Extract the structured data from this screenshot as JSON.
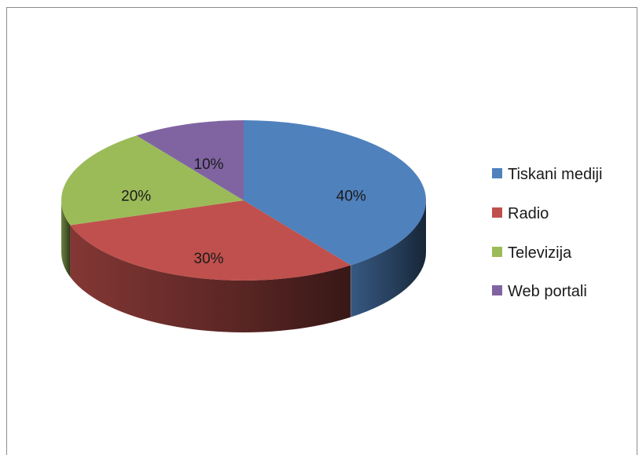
{
  "chart_data": {
    "type": "pie",
    "title": "",
    "categories": [
      "Tiskani mediji",
      "Radio",
      "Televizija",
      "Web portali"
    ],
    "values": [
      40,
      30,
      20,
      10
    ],
    "value_labels": [
      "40%",
      "30%",
      "20%",
      "10%"
    ],
    "colors": [
      "#4f81bd",
      "#c0504d",
      "#9bbb59",
      "#8064a2"
    ],
    "legend_position": "right",
    "style": "3d"
  }
}
